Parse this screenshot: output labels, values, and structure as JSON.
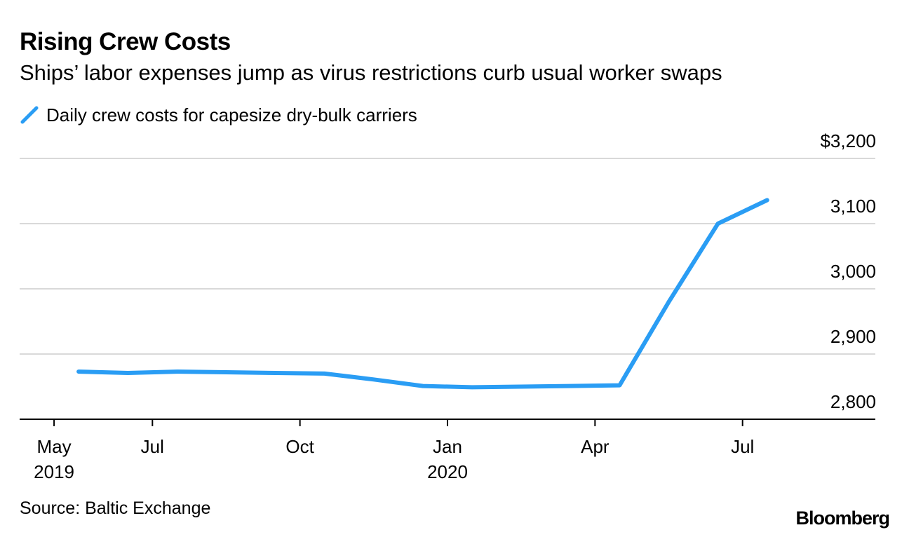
{
  "chart_data": {
    "type": "line",
    "title": "Rising Crew Costs",
    "subtitle": "Ships’ labor expenses jump as virus restrictions curb usual worker swaps",
    "series": [
      {
        "name": "Daily crew costs for capesize dry-bulk carriers",
        "color": "#2a9df4",
        "points": [
          {
            "x": "2019-05",
            "y": 2873
          },
          {
            "x": "2019-06",
            "y": 2871
          },
          {
            "x": "2019-07",
            "y": 2873
          },
          {
            "x": "2019-08",
            "y": 2872
          },
          {
            "x": "2019-09",
            "y": 2871
          },
          {
            "x": "2019-10",
            "y": 2870
          },
          {
            "x": "2019-11",
            "y": 2861
          },
          {
            "x": "2019-12",
            "y": 2851
          },
          {
            "x": "2020-01",
            "y": 2849
          },
          {
            "x": "2020-02",
            "y": 2850
          },
          {
            "x": "2020-03",
            "y": 2851
          },
          {
            "x": "2020-04",
            "y": 2852
          },
          {
            "x": "2020-05",
            "y": 2980
          },
          {
            "x": "2020-06",
            "y": 3100
          },
          {
            "x": "2020-07",
            "y": 3136
          }
        ]
      }
    ],
    "x_ticks": [
      {
        "month": "2019-05",
        "label": "May",
        "sublabel": "2019"
      },
      {
        "month": "2019-07",
        "label": "Jul",
        "sublabel": ""
      },
      {
        "month": "2019-10",
        "label": "Oct",
        "sublabel": ""
      },
      {
        "month": "2020-01",
        "label": "Jan",
        "sublabel": "2020"
      },
      {
        "month": "2020-04",
        "label": "Apr",
        "sublabel": ""
      },
      {
        "month": "2020-07",
        "label": "Jul",
        "sublabel": ""
      }
    ],
    "y_ticks": [
      {
        "value": 2800,
        "label": "2,800"
      },
      {
        "value": 2900,
        "label": "2,900"
      },
      {
        "value": 3000,
        "label": "3,000"
      },
      {
        "value": 3100,
        "label": "3,100"
      },
      {
        "value": 3200,
        "label": "$3,200"
      }
    ],
    "ylim": [
      2800,
      3200
    ],
    "xlim": [
      "2019-04",
      "2020-09"
    ],
    "grid": true,
    "legend_position": "top-left",
    "xlabel": "",
    "ylabel": ""
  },
  "source": "Source: Baltic Exchange",
  "brand": "Bloomberg"
}
